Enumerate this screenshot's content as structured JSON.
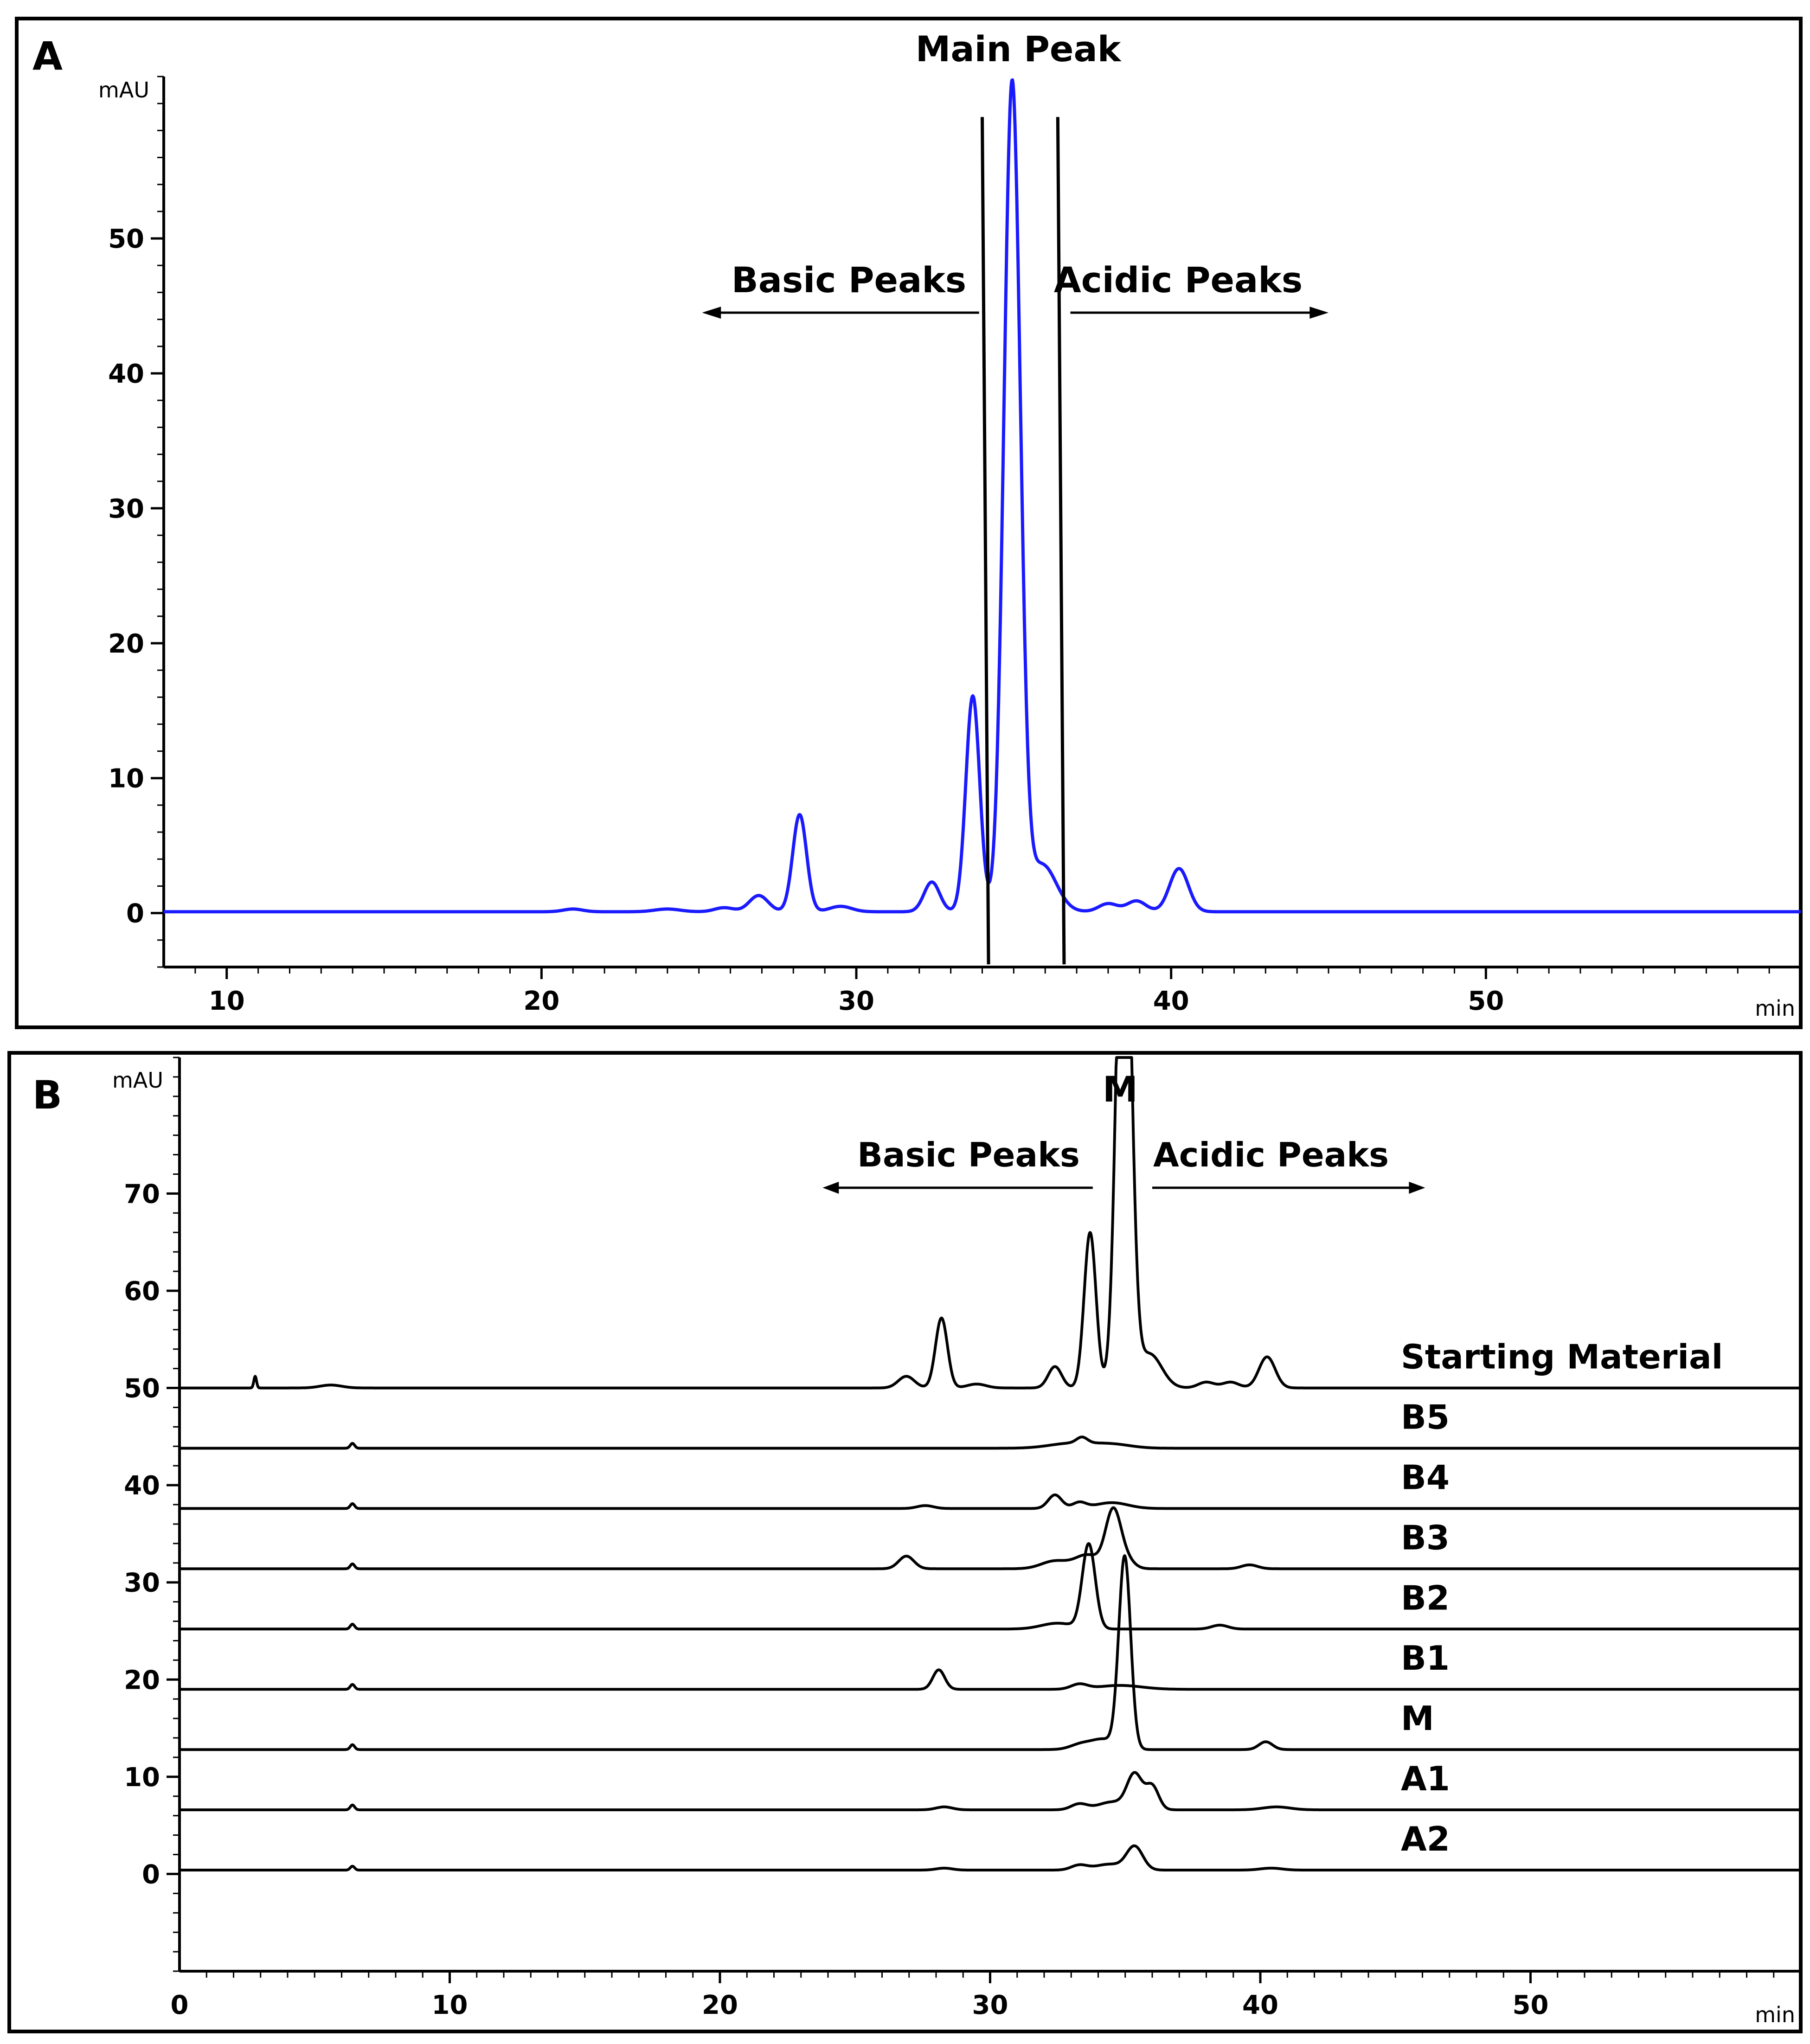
{
  "colors": {
    "trace_a": "#1a1aff",
    "trace_b": "#000000",
    "boundary": "#000000"
  },
  "chart_data": [
    {
      "type": "line",
      "panel_label": "A",
      "ylabel": "mAU",
      "xlabel": "min",
      "xlim": [
        8,
        60
      ],
      "ylim": [
        -4,
        62
      ],
      "x_ticks": [
        10,
        20,
        30,
        40,
        50
      ],
      "y_ticks": [
        0,
        10,
        20,
        30,
        40,
        50
      ],
      "grid": false,
      "annotations": {
        "main_peak": "Main Peak",
        "basic": "Basic Peaks",
        "acidic": "Acidic Peaks"
      },
      "boundaries_min": [
        34.2,
        36.6
      ],
      "series": [
        {
          "peaks": [
            {
              "rt": 21.0,
              "height": 0.2,
              "width": 0.3
            },
            {
              "rt": 24.0,
              "height": 0.2,
              "width": 0.4
            },
            {
              "rt": 25.8,
              "height": 0.3,
              "width": 0.3
            },
            {
              "rt": 26.9,
              "height": 1.2,
              "width": 0.3
            },
            {
              "rt": 28.2,
              "height": 7.2,
              "width": 0.22
            },
            {
              "rt": 29.5,
              "height": 0.4,
              "width": 0.35
            },
            {
              "rt": 32.4,
              "height": 2.2,
              "width": 0.25
            },
            {
              "rt": 33.7,
              "height": 16.0,
              "width": 0.22
            },
            {
              "rt": 34.95,
              "height": 61.3,
              "width": 0.26
            },
            {
              "rt": 35.9,
              "height": 3.5,
              "width": 0.45
            },
            {
              "rt": 38.0,
              "height": 0.6,
              "width": 0.3
            },
            {
              "rt": 38.9,
              "height": 0.8,
              "width": 0.3
            },
            {
              "rt": 40.25,
              "height": 3.2,
              "width": 0.3
            }
          ],
          "baseline": 0.1
        }
      ]
    },
    {
      "type": "line",
      "panel_label": "B",
      "ylabel": "mAU",
      "xlabel": "min",
      "xlim": [
        0,
        60
      ],
      "ylim": [
        -10,
        84
      ],
      "x_ticks": [
        0,
        10,
        20,
        30,
        40,
        50
      ],
      "y_ticks": [
        0,
        10,
        20,
        30,
        40,
        50,
        60,
        70
      ],
      "grid": false,
      "annotations": {
        "main_peak": "M",
        "basic": "Basic Peaks",
        "acidic": "Acidic Peaks"
      },
      "series": [
        {
          "name": "Starting Material",
          "offset": 50.0,
          "peaks": [
            {
              "rt": 2.8,
              "height": 1.2,
              "width": 0.05
            },
            {
              "rt": 5.6,
              "height": 0.3,
              "width": 0.4
            },
            {
              "rt": 26.9,
              "height": 1.2,
              "width": 0.3
            },
            {
              "rt": 28.2,
              "height": 7.2,
              "width": 0.22
            },
            {
              "rt": 29.5,
              "height": 0.4,
              "width": 0.35
            },
            {
              "rt": 32.4,
              "height": 2.2,
              "width": 0.25
            },
            {
              "rt": 33.7,
              "height": 16.0,
              "width": 0.22
            },
            {
              "rt": 34.95,
              "height": 61.3,
              "width": 0.26
            },
            {
              "rt": 35.9,
              "height": 3.5,
              "width": 0.45
            },
            {
              "rt": 38.0,
              "height": 0.6,
              "width": 0.3
            },
            {
              "rt": 38.9,
              "height": 0.6,
              "width": 0.3
            },
            {
              "rt": 40.25,
              "height": 3.2,
              "width": 0.3
            }
          ]
        },
        {
          "name": "B5",
          "offset": 43.8,
          "peaks": [
            {
              "rt": 6.4,
              "height": 0.5,
              "width": 0.08
            },
            {
              "rt": 33.0,
              "height": 0.5,
              "width": 0.8
            },
            {
              "rt": 33.4,
              "height": 0.6,
              "width": 0.2
            },
            {
              "rt": 34.5,
              "height": 0.4,
              "width": 0.7
            }
          ]
        },
        {
          "name": "B4",
          "offset": 37.6,
          "peaks": [
            {
              "rt": 6.4,
              "height": 0.5,
              "width": 0.08
            },
            {
              "rt": 27.6,
              "height": 0.3,
              "width": 0.3
            },
            {
              "rt": 32.4,
              "height": 1.4,
              "width": 0.25
            },
            {
              "rt": 33.3,
              "height": 0.6,
              "width": 0.25
            },
            {
              "rt": 34.5,
              "height": 0.6,
              "width": 0.6
            }
          ]
        },
        {
          "name": "B3",
          "offset": 31.4,
          "peaks": [
            {
              "rt": 6.4,
              "height": 0.5,
              "width": 0.08
            },
            {
              "rt": 26.9,
              "height": 1.3,
              "width": 0.28
            },
            {
              "rt": 32.4,
              "height": 0.8,
              "width": 0.5
            },
            {
              "rt": 33.6,
              "height": 1.4,
              "width": 0.45
            },
            {
              "rt": 34.55,
              "height": 5.8,
              "width": 0.28
            },
            {
              "rt": 35.0,
              "height": 1.0,
              "width": 0.3
            },
            {
              "rt": 39.6,
              "height": 0.4,
              "width": 0.3
            }
          ]
        },
        {
          "name": "B2",
          "offset": 25.2,
          "peaks": [
            {
              "rt": 6.4,
              "height": 0.5,
              "width": 0.08
            },
            {
              "rt": 32.5,
              "height": 0.6,
              "width": 0.6
            },
            {
              "rt": 33.65,
              "height": 8.7,
              "width": 0.24
            },
            {
              "rt": 38.5,
              "height": 0.4,
              "width": 0.3
            }
          ]
        },
        {
          "name": "B1",
          "offset": 19.0,
          "peaks": [
            {
              "rt": 6.4,
              "height": 0.5,
              "width": 0.08
            },
            {
              "rt": 28.1,
              "height": 2.0,
              "width": 0.22
            },
            {
              "rt": 33.3,
              "height": 0.5,
              "width": 0.3
            },
            {
              "rt": 34.8,
              "height": 0.4,
              "width": 0.8
            }
          ]
        },
        {
          "name": "M",
          "offset": 12.8,
          "peaks": [
            {
              "rt": 6.4,
              "height": 0.5,
              "width": 0.08
            },
            {
              "rt": 33.4,
              "height": 0.6,
              "width": 0.4
            },
            {
              "rt": 34.2,
              "height": 1.0,
              "width": 0.4
            },
            {
              "rt": 34.98,
              "height": 19.8,
              "width": 0.22
            },
            {
              "rt": 40.2,
              "height": 0.8,
              "width": 0.25
            }
          ]
        },
        {
          "name": "A1",
          "offset": 6.6,
          "peaks": [
            {
              "rt": 6.4,
              "height": 0.5,
              "width": 0.08
            },
            {
              "rt": 28.3,
              "height": 0.3,
              "width": 0.3
            },
            {
              "rt": 33.3,
              "height": 0.6,
              "width": 0.3
            },
            {
              "rt": 34.5,
              "height": 0.8,
              "width": 0.5
            },
            {
              "rt": 35.35,
              "height": 3.6,
              "width": 0.28
            },
            {
              "rt": 36.0,
              "height": 2.4,
              "width": 0.24
            },
            {
              "rt": 40.6,
              "height": 0.3,
              "width": 0.5
            }
          ]
        },
        {
          "name": "A2",
          "offset": 0.4,
          "peaks": [
            {
              "rt": 6.4,
              "height": 0.4,
              "width": 0.08
            },
            {
              "rt": 28.3,
              "height": 0.2,
              "width": 0.3
            },
            {
              "rt": 33.3,
              "height": 0.5,
              "width": 0.3
            },
            {
              "rt": 34.4,
              "height": 0.6,
              "width": 0.5
            },
            {
              "rt": 35.35,
              "height": 2.4,
              "width": 0.3
            },
            {
              "rt": 40.4,
              "height": 0.2,
              "width": 0.4
            }
          ]
        }
      ]
    }
  ]
}
